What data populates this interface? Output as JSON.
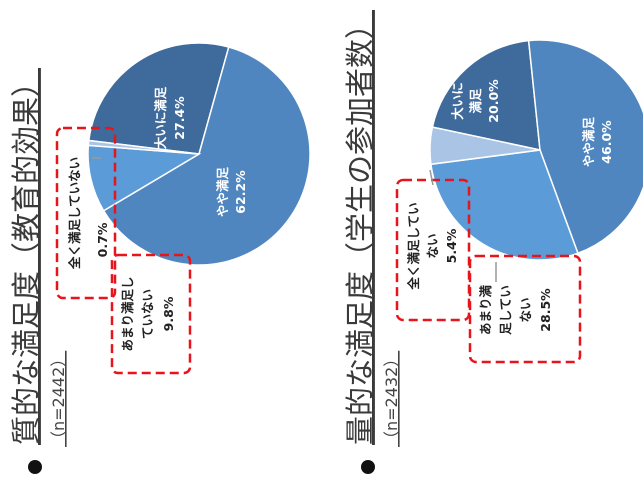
{
  "chart_data": [
    {
      "type": "pie",
      "title": "質的な満足度（教育的効果）",
      "n_label": "（n=2442）",
      "unit": "%",
      "slices": [
        {
          "label": "大いに満足",
          "value": 27.4,
          "value_label": "27.4%",
          "color": "#3f6a9c"
        },
        {
          "label": "やや満足",
          "value": 62.2,
          "value_label": "62.2%",
          "color": "#4f86bf"
        },
        {
          "label": "あまり満足していない",
          "value": 9.8,
          "value_label": "9.8%",
          "color": "#5b9bd8"
        },
        {
          "label": "全く満足していない",
          "value": 0.7,
          "value_label": "0.7%",
          "color": "#a9c4e4"
        }
      ]
    },
    {
      "type": "pie",
      "title": "量的な満足度（学生の参加者数）",
      "n_label": "（n=2432）",
      "unit": "%",
      "slices": [
        {
          "label": "大いに満足",
          "value": 20.0,
          "value_label": "20.0%",
          "color": "#3f6a9c"
        },
        {
          "label": "やや満足",
          "value": 46.0,
          "value_label": "46.0%",
          "color": "#4f86bf"
        },
        {
          "label": "あまり満足していない",
          "value": 28.5,
          "value_label": "28.5%",
          "color": "#5b9bd8"
        },
        {
          "label": "全く満足していない",
          "value": 5.4,
          "value_label": "5.4%",
          "color": "#a9c4e4"
        }
      ]
    }
  ]
}
